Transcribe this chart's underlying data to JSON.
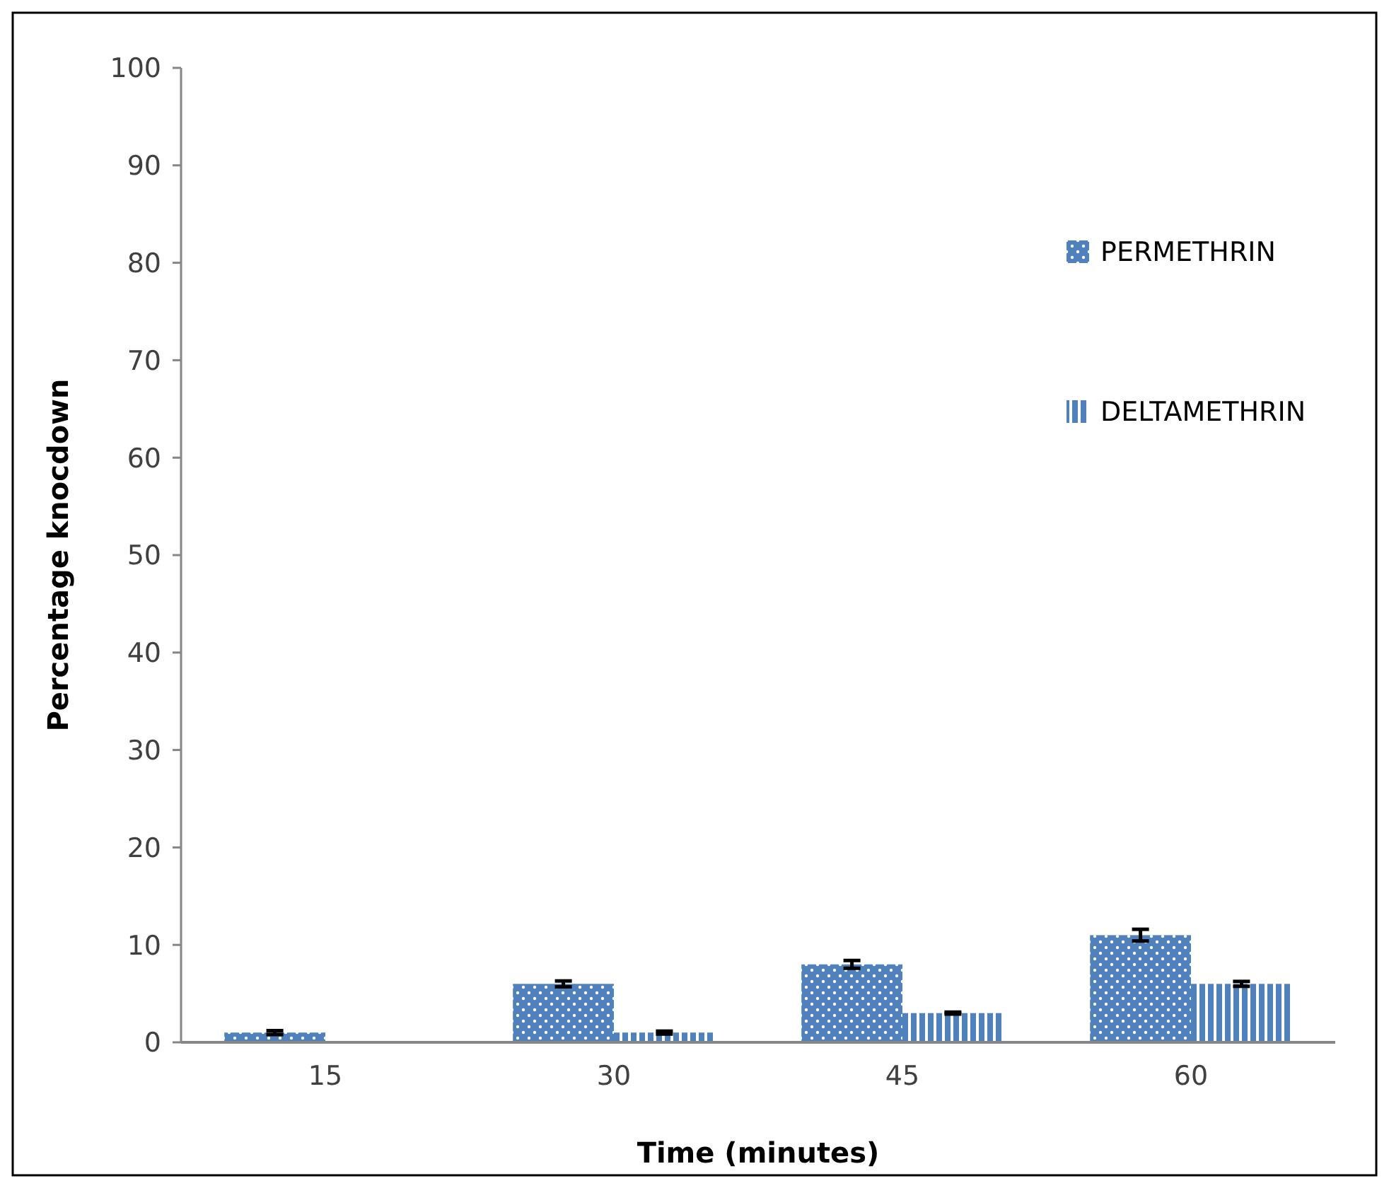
{
  "chart_data": {
    "type": "bar",
    "xlabel": "Time (minutes)",
    "ylabel": "Percentage knocdown",
    "categories": [
      "15",
      "30",
      "45",
      "60"
    ],
    "series": [
      {
        "name": "PERMETHRIN",
        "color": "#4f81bd",
        "values": [
          1,
          6,
          8,
          11
        ],
        "errors": [
          0.2,
          0.3,
          0.4,
          0.6
        ]
      },
      {
        "name": "DELTAMETHRIN",
        "color": "#4f81bd",
        "values": [
          0,
          1,
          3,
          6
        ],
        "errors": [
          null,
          0.15,
          0.1,
          0.25
        ]
      }
    ],
    "ylim": [
      0,
      100
    ],
    "yticks": [
      0,
      10,
      20,
      30,
      40,
      50,
      60,
      70,
      80,
      90,
      100
    ],
    "grid": false,
    "legend": "top right"
  }
}
